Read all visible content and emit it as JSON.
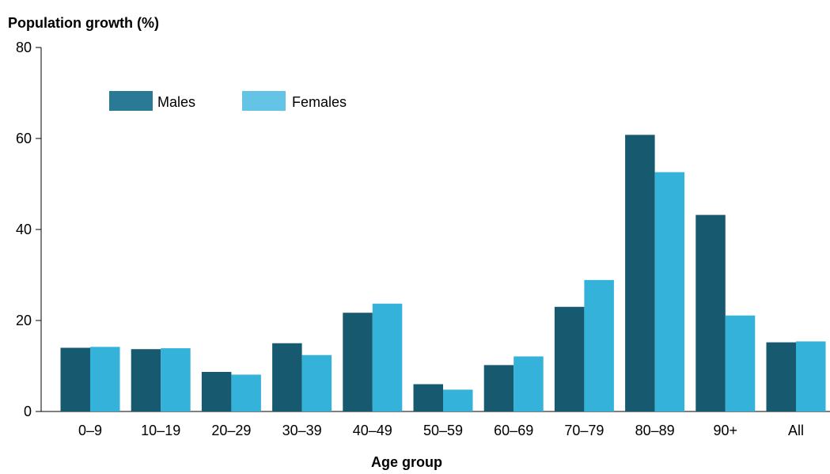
{
  "chart_data": {
    "type": "bar",
    "ylabel": "Population growth (%)",
    "xlabel": "Age group",
    "ylim": [
      0,
      80
    ],
    "yticks": [
      0,
      20,
      40,
      60,
      80
    ],
    "grid": false,
    "legend_position": "top-left",
    "categories": [
      "0–9",
      "10–19",
      "20–29",
      "30–39",
      "40–49",
      "50–59",
      "60–69",
      "70–79",
      "80–89",
      "90+",
      "All"
    ],
    "series": [
      {
        "name": "Males",
        "color": "#175a70",
        "legend_color": "#2a7a96",
        "values": [
          14.0,
          13.7,
          8.7,
          15.0,
          21.7,
          6.0,
          10.2,
          23.0,
          60.8,
          43.2,
          15.2
        ]
      },
      {
        "name": "Females",
        "color": "#35b2da",
        "legend_color": "#64c4e6",
        "values": [
          14.2,
          13.9,
          8.1,
          12.4,
          23.7,
          4.8,
          12.1,
          28.9,
          52.6,
          21.1,
          15.4
        ]
      }
    ]
  }
}
